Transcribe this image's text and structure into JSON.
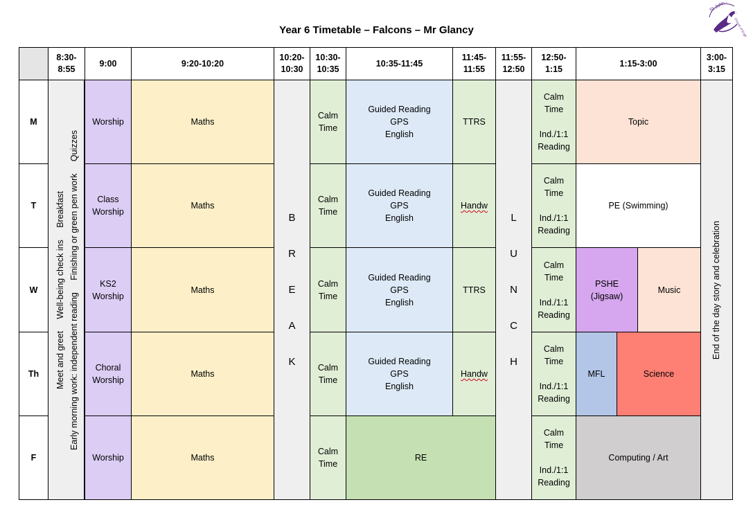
{
  "title": "Year 6 Timetable – Falcons – Mr Glancy",
  "logo": {
    "text": "St John's Church of England Primary School",
    "icon": "bird-logo"
  },
  "header": {
    "c1": "8:30-\n8:55",
    "c2": "9:00",
    "c3": "9:20-10:20",
    "c4": "10:20-\n10:30",
    "c5": "10:30-\n10:35",
    "c6": "10:35-11:45",
    "c7": "11:45-\n11:55",
    "c8": "11:55-\n12:50",
    "c9": "12:50-\n1:15",
    "c10": "1:15-3:00",
    "c11": "3:00-\n3:15"
  },
  "days": [
    "M",
    "T",
    "W",
    "Th",
    "F"
  ],
  "morning": {
    "line1": "Meet and greet",
    "line1b": "Well-being check ins",
    "line1c": "Breakfast",
    "line2": "Early morning work: independent reading",
    "line2b": "Finishing or green pen work",
    "line2c": "Quizzes"
  },
  "worship": [
    "Worship",
    "Class\nWorship",
    "KS2\nWorship",
    "Choral\nWorship",
    "Worship"
  ],
  "maths": "Maths",
  "break_letters": [
    "B",
    "R",
    "E",
    "A",
    "K"
  ],
  "lunch_letters": [
    "L",
    "U",
    "N",
    "C",
    "H"
  ],
  "calm": "Calm\nTime",
  "guided": "Guided Reading\nGPS\nEnglish",
  "slot7": [
    "TTRS",
    "Handw",
    "TTRS",
    "Handw"
  ],
  "re": "RE",
  "reading": "Calm\nTime\n\nInd./1:1\nReading",
  "afternoon": {
    "mon": "Topic",
    "tue": "PE (Swimming)",
    "wed_a": "PSHE\n(Jigsaw)",
    "wed_b": "Music",
    "thu_a": "MFL",
    "thu_b": "Science",
    "fri": "Computing / Art"
  },
  "end_of_day": "End of the day story and celebration"
}
